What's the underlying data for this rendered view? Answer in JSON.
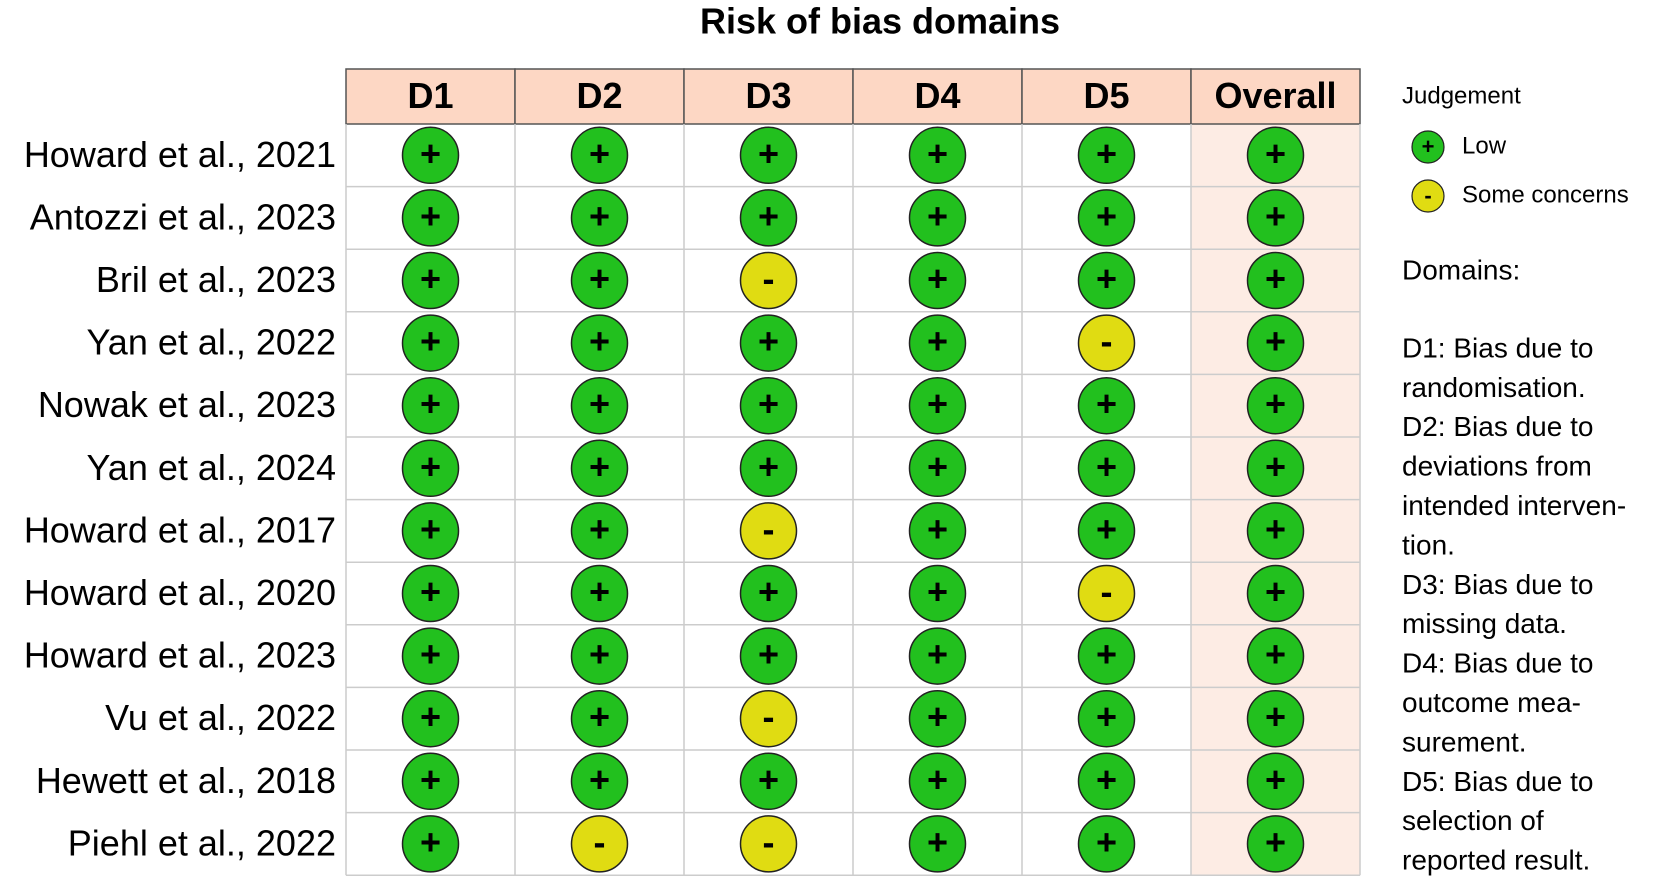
{
  "title": "Risk of bias domains",
  "columns": [
    "D1",
    "D2",
    "D3",
    "D4",
    "D5",
    "Overall"
  ],
  "rows": [
    {
      "study": "Howard et al., 2021",
      "judgements": [
        "+",
        "+",
        "+",
        "+",
        "+",
        "+"
      ]
    },
    {
      "study": "Antozzi et al., 2023",
      "judgements": [
        "+",
        "+",
        "+",
        "+",
        "+",
        "+"
      ]
    },
    {
      "study": "Bril et al., 2023",
      "judgements": [
        "+",
        "+",
        "-",
        "+",
        "+",
        "+"
      ]
    },
    {
      "study": "Yan et al., 2022",
      "judgements": [
        "+",
        "+",
        "+",
        "+",
        "-",
        "+"
      ]
    },
    {
      "study": "Nowak et al., 2023",
      "judgements": [
        "+",
        "+",
        "+",
        "+",
        "+",
        "+"
      ]
    },
    {
      "study": "Yan et al., 2024",
      "judgements": [
        "+",
        "+",
        "+",
        "+",
        "+",
        "+"
      ]
    },
    {
      "study": "Howard et al., 2017",
      "judgements": [
        "+",
        "+",
        "-",
        "+",
        "+",
        "+"
      ]
    },
    {
      "study": "Howard et al., 2020",
      "judgements": [
        "+",
        "+",
        "+",
        "+",
        "-",
        "+"
      ]
    },
    {
      "study": "Howard et al., 2023",
      "judgements": [
        "+",
        "+",
        "+",
        "+",
        "+",
        "+"
      ]
    },
    {
      "study": "Vu et al., 2022",
      "judgements": [
        "+",
        "+",
        "-",
        "+",
        "+",
        "+"
      ]
    },
    {
      "study": "Hewett et al., 2018",
      "judgements": [
        "+",
        "+",
        "+",
        "+",
        "+",
        "+"
      ]
    },
    {
      "study": "Piehl et al., 2022",
      "judgements": [
        "+",
        "-",
        "-",
        "+",
        "+",
        "+"
      ]
    }
  ],
  "legend": {
    "title": "Judgement",
    "items": [
      {
        "symbol": "+",
        "label": "Low",
        "color": "#22c01e"
      },
      {
        "symbol": "-",
        "label": "Some concerns",
        "color": "#e0dc12"
      }
    ]
  },
  "domains": {
    "title": "Domains:",
    "lines": [
      "D1: Bias due to",
      "randomisation.",
      "D2: Bias due to",
      "deviations from",
      "intended interven-",
      "tion.",
      "D3: Bias due to",
      "missing data.",
      "D4: Bias due to",
      "outcome mea-",
      "surement.",
      "D5: Bias due to",
      "selection of",
      "reported result."
    ]
  }
}
